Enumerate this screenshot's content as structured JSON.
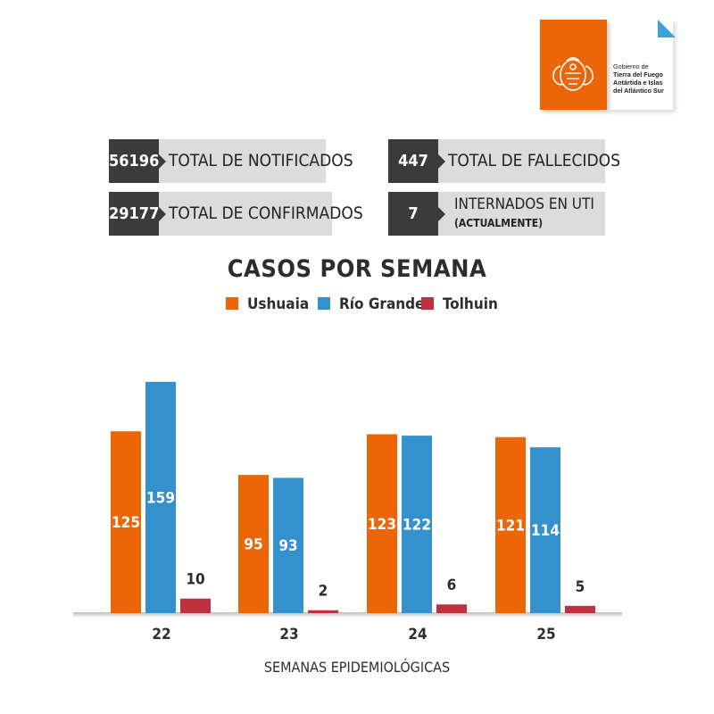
{
  "logo": {
    "lines": [
      "Gobierno de",
      "Tierra del Fuego",
      "Antártida e Islas",
      "del Atlántico Sur"
    ],
    "brand_color": "#ec6608",
    "accent_color": "#3aa3de",
    "emblem_icon": "provincial-emblem-icon"
  },
  "stats": {
    "notificados": {
      "value": "56196",
      "label": "TOTAL DE NOTIFICADOS"
    },
    "confirmados": {
      "value": "29177",
      "label": "TOTAL DE CONFIRMADOS"
    },
    "fallecidos": {
      "value": "447",
      "label": "TOTAL DE FALLECIDOS"
    },
    "uti": {
      "value": "7",
      "label": "INTERNADOS EN UTI",
      "sublabel": "(ACTUALMENTE)"
    }
  },
  "chart_data": {
    "type": "bar",
    "title": "CASOS POR SEMANA",
    "xlabel": "SEMANAS EPIDEMIOLÓGICAS",
    "ylabel": "",
    "categories": [
      "22",
      "23",
      "24",
      "25"
    ],
    "series": [
      {
        "name": "Ushuaia",
        "color": "#ec6608",
        "values": [
          125,
          95,
          123,
          121
        ]
      },
      {
        "name": "Río Grande",
        "color": "#3591ce",
        "values": [
          159,
          93,
          122,
          114
        ]
      },
      {
        "name": "Tolhuin",
        "color": "#c0313f",
        "values": [
          10,
          2,
          6,
          5
        ]
      }
    ],
    "ylim": [
      0,
      160
    ],
    "grid": false,
    "legend": "top-center"
  }
}
